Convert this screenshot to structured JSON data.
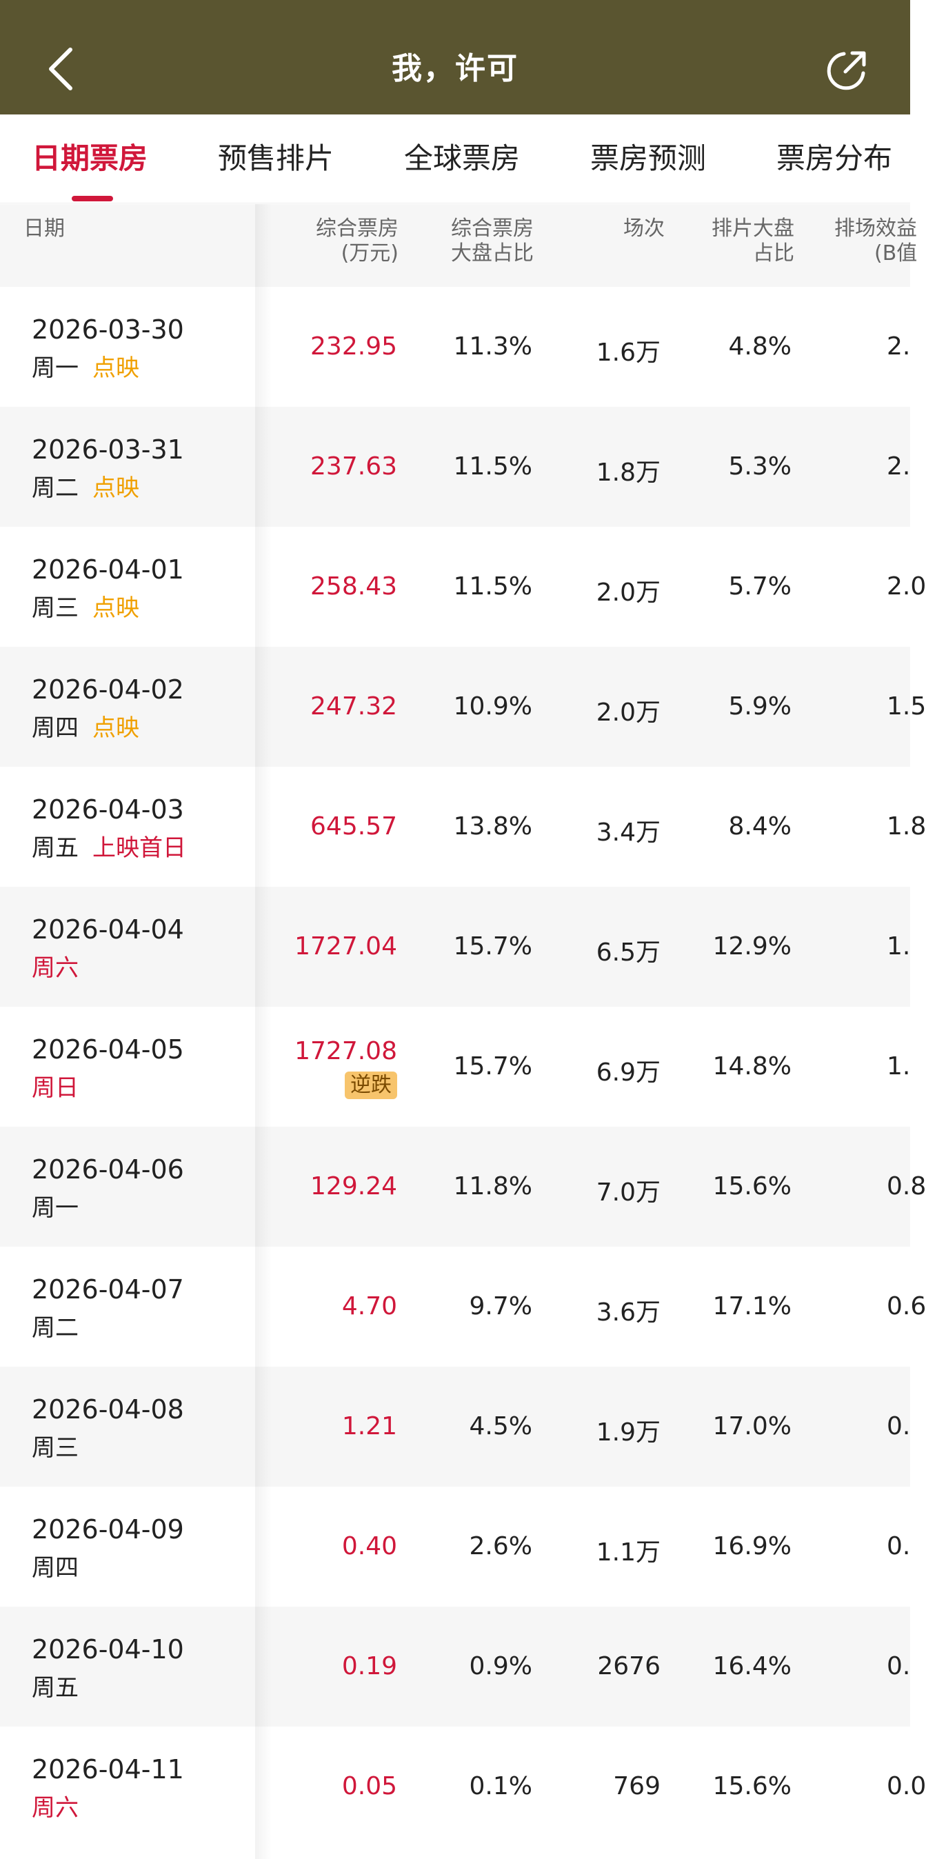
{
  "header": {
    "title": "我，许可",
    "back_icon": "chevron-left-icon",
    "share_icon": "share-icon"
  },
  "tabs": [
    {
      "label": "日期票房",
      "active": true
    },
    {
      "label": "预售排片",
      "active": false
    },
    {
      "label": "全球票房",
      "active": false
    },
    {
      "label": "票房预测",
      "active": false
    },
    {
      "label": "票房分布",
      "active": false
    }
  ],
  "table": {
    "headers": {
      "date": "日期",
      "box_office": [
        "综合票房",
        "(万元)"
      ],
      "market_share": [
        "综合票房",
        "大盘占比"
      ],
      "sessions": "场次",
      "schedule_share": [
        "排片大盘",
        "占比"
      ],
      "efficiency": [
        "排场效益",
        "(B值"
      ]
    },
    "rows": [
      {
        "date": "2026-03-30",
        "weekday": "周一",
        "weekday_red": false,
        "tag": "点映",
        "tag_color": "orange",
        "box_office": "232.95",
        "badge": "",
        "market_share": "11.3%",
        "sessions": "1.6万",
        "schedule_share": "4.8%",
        "efficiency": "2."
      },
      {
        "date": "2026-03-31",
        "weekday": "周二",
        "weekday_red": false,
        "tag": "点映",
        "tag_color": "orange",
        "box_office": "237.63",
        "badge": "",
        "market_share": "11.5%",
        "sessions": "1.8万",
        "schedule_share": "5.3%",
        "efficiency": "2."
      },
      {
        "date": "2026-04-01",
        "weekday": "周三",
        "weekday_red": false,
        "tag": "点映",
        "tag_color": "orange",
        "box_office": "258.43",
        "badge": "",
        "market_share": "11.5%",
        "sessions": "2.0万",
        "schedule_share": "5.7%",
        "efficiency": "2.0"
      },
      {
        "date": "2026-04-02",
        "weekday": "周四",
        "weekday_red": false,
        "tag": "点映",
        "tag_color": "orange",
        "box_office": "247.32",
        "badge": "",
        "market_share": "10.9%",
        "sessions": "2.0万",
        "schedule_share": "5.9%",
        "efficiency": "1.5"
      },
      {
        "date": "2026-04-03",
        "weekday": "周五",
        "weekday_red": false,
        "tag": "上映首日",
        "tag_color": "red",
        "box_office": "645.57",
        "badge": "",
        "market_share": "13.8%",
        "sessions": "3.4万",
        "schedule_share": "8.4%",
        "efficiency": "1.8"
      },
      {
        "date": "2026-04-04",
        "weekday": "周六",
        "weekday_red": true,
        "tag": "",
        "tag_color": "",
        "box_office": "1727.04",
        "badge": "",
        "market_share": "15.7%",
        "sessions": "6.5万",
        "schedule_share": "12.9%",
        "efficiency": "1."
      },
      {
        "date": "2026-04-05",
        "weekday": "周日",
        "weekday_red": true,
        "tag": "",
        "tag_color": "",
        "box_office": "1727.08",
        "badge": "逆跌",
        "market_share": "15.7%",
        "sessions": "6.9万",
        "schedule_share": "14.8%",
        "efficiency": "1."
      },
      {
        "date": "2026-04-06",
        "weekday": "周一",
        "weekday_red": false,
        "tag": "",
        "tag_color": "",
        "box_office": "129.24",
        "badge": "",
        "market_share": "11.8%",
        "sessions": "7.0万",
        "schedule_share": "15.6%",
        "efficiency": "0.8"
      },
      {
        "date": "2026-04-07",
        "weekday": "周二",
        "weekday_red": false,
        "tag": "",
        "tag_color": "",
        "box_office": "4.70",
        "badge": "",
        "market_share": "9.7%",
        "sessions": "3.6万",
        "schedule_share": "17.1%",
        "efficiency": "0.6"
      },
      {
        "date": "2026-04-08",
        "weekday": "周三",
        "weekday_red": false,
        "tag": "",
        "tag_color": "",
        "box_office": "1.21",
        "badge": "",
        "market_share": "4.5%",
        "sessions": "1.9万",
        "schedule_share": "17.0%",
        "efficiency": "0."
      },
      {
        "date": "2026-04-09",
        "weekday": "周四",
        "weekday_red": false,
        "tag": "",
        "tag_color": "",
        "box_office": "0.40",
        "badge": "",
        "market_share": "2.6%",
        "sessions": "1.1万",
        "schedule_share": "16.9%",
        "efficiency": "0."
      },
      {
        "date": "2026-04-10",
        "weekday": "周五",
        "weekday_red": false,
        "tag": "",
        "tag_color": "",
        "box_office": "0.19",
        "badge": "",
        "market_share": "0.9%",
        "sessions": "2676",
        "schedule_share": "16.4%",
        "efficiency": "0."
      },
      {
        "date": "2026-04-11",
        "weekday": "周六",
        "weekday_red": true,
        "tag": "",
        "tag_color": "",
        "box_office": "0.05",
        "badge": "",
        "market_share": "0.1%",
        "sessions": "769",
        "schedule_share": "15.6%",
        "efficiency": "0.0"
      }
    ]
  },
  "colors": {
    "header_bg": "#5a5530",
    "accent_red": "#d0173a",
    "tag_orange": "#f0a000",
    "badge_bg": "#f7c46c"
  }
}
